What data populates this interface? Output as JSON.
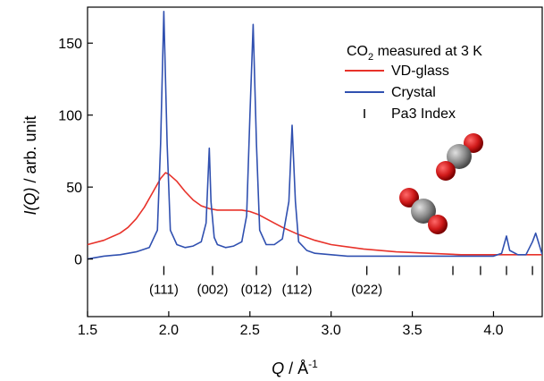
{
  "chart_data": {
    "type": "line",
    "xlabel_main": "Q",
    "xlabel_unit": " / Å",
    "xlabel_sup": "-1",
    "ylabel_main": "I(Q)",
    "ylabel_unit": " / arb. unit",
    "xlim": [
      1.5,
      4.3
    ],
    "ylim": [
      -40,
      175
    ],
    "xticks": [
      1.5,
      2.0,
      2.5,
      3.0,
      3.5,
      4.0
    ],
    "xtick_labels": [
      "1.5",
      "2.0",
      "2.5",
      "3.0",
      "3.5",
      "4.0"
    ],
    "yticks": [
      0,
      50,
      100,
      150
    ],
    "ytick_labels": [
      "0",
      "50",
      "100",
      "150"
    ],
    "legend": {
      "title_main": "CO",
      "title_sub": "2",
      "title_rest": "  measured at 3 K",
      "entries": [
        {
          "label": "VD-glass",
          "color": "#e8322a",
          "kind": "line"
        },
        {
          "label": "Crystal",
          "color": "#3050b0",
          "kind": "line"
        },
        {
          "label": "Pa3 Index",
          "color": "#000000",
          "kind": "tick"
        }
      ],
      "placement": "top-right"
    },
    "series": [
      {
        "name": "VD-glass",
        "color": "#e8322a",
        "x": [
          1.5,
          1.6,
          1.7,
          1.75,
          1.8,
          1.85,
          1.9,
          1.95,
          1.98,
          2.0,
          2.05,
          2.1,
          2.15,
          2.2,
          2.25,
          2.3,
          2.35,
          2.4,
          2.45,
          2.5,
          2.55,
          2.6,
          2.65,
          2.7,
          2.8,
          2.9,
          3.0,
          3.2,
          3.4,
          3.6,
          3.8,
          4.0,
          4.2,
          4.3
        ],
        "y": [
          10,
          13,
          18,
          22,
          28,
          36,
          46,
          56,
          60,
          59,
          54,
          47,
          41,
          37,
          35,
          34,
          34,
          34,
          34,
          33,
          31,
          28,
          25,
          22,
          17,
          13,
          10,
          7,
          5,
          4,
          3,
          3,
          3,
          3
        ]
      },
      {
        "name": "Crystal",
        "color": "#3050b0",
        "x": [
          1.5,
          1.6,
          1.7,
          1.8,
          1.88,
          1.93,
          1.95,
          1.97,
          1.99,
          2.01,
          2.05,
          2.1,
          2.15,
          2.2,
          2.23,
          2.25,
          2.26,
          2.28,
          2.3,
          2.35,
          2.4,
          2.45,
          2.48,
          2.5,
          2.52,
          2.54,
          2.56,
          2.6,
          2.65,
          2.7,
          2.74,
          2.76,
          2.78,
          2.8,
          2.85,
          2.9,
          3.0,
          3.1,
          3.2,
          3.3,
          3.4,
          3.5,
          3.6,
          3.7,
          3.8,
          3.9,
          4.0,
          4.05,
          4.08,
          4.1,
          4.15,
          4.2,
          4.24,
          4.26,
          4.3
        ],
        "y": [
          0,
          2,
          3,
          5,
          8,
          20,
          80,
          172,
          80,
          20,
          10,
          8,
          9,
          12,
          25,
          77,
          40,
          15,
          10,
          8,
          9,
          12,
          30,
          100,
          163,
          80,
          20,
          10,
          10,
          14,
          40,
          93,
          40,
          12,
          6,
          4,
          3,
          2,
          2,
          2,
          2,
          2,
          2,
          2,
          2,
          2,
          2,
          4,
          16,
          6,
          3,
          3,
          12,
          18,
          3
        ]
      }
    ],
    "pa3_index_ticks": [
      1.97,
      2.27,
      2.54,
      2.79,
      3.22,
      3.42,
      3.75,
      3.92,
      4.08,
      4.24
    ],
    "hkl_labels": [
      {
        "label": "(111)",
        "x": 1.97
      },
      {
        "label": "(002)",
        "x": 2.27
      },
      {
        "label": "(012)",
        "x": 2.54
      },
      {
        "label": "(112)",
        "x": 2.79
      },
      {
        "label": "(022)",
        "x": 3.22
      }
    ]
  }
}
